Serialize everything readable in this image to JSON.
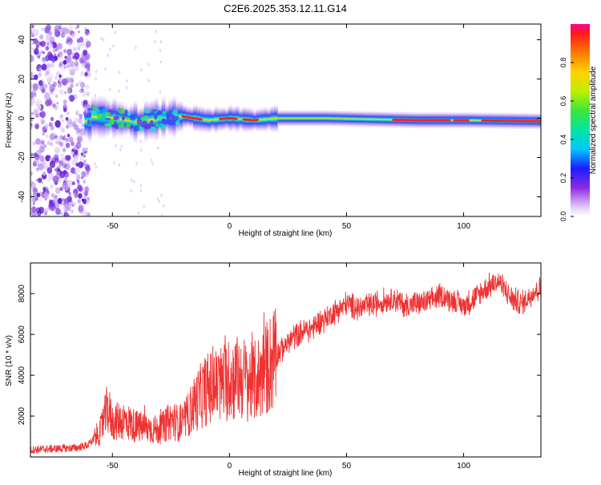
{
  "title": "C2E6.2025.353.12.11.G14",
  "chart_data": [
    {
      "type": "heatmap",
      "xlabel": "Height of straight line (km)",
      "ylabel": "Frequency (Hz)",
      "xlim": [
        -85,
        133
      ],
      "ylim": [
        -50,
        48
      ],
      "xticks": [
        -50,
        0,
        50,
        100
      ],
      "yticks": [
        -40,
        -20,
        0,
        20,
        40
      ],
      "grid": false,
      "colorbar": {
        "label": "Normalized spectral amplitude",
        "range": [
          0,
          1
        ],
        "ticks": [
          "0.0",
          "0.2",
          "0.4",
          "0.6",
          "0.8"
        ]
      },
      "ridge_frequency_hz": [
        [
          -60,
          1
        ],
        [
          -50,
          0
        ],
        [
          -40,
          -2
        ],
        [
          -30,
          0
        ],
        [
          -20,
          1
        ],
        [
          -10,
          -1
        ],
        [
          0,
          0
        ],
        [
          10,
          -1
        ],
        [
          20,
          0
        ],
        [
          40,
          0
        ],
        [
          60,
          -0.5
        ],
        [
          80,
          -1
        ],
        [
          100,
          -1
        ],
        [
          133,
          -1.5
        ]
      ]
    },
    {
      "type": "line",
      "xlabel": "Height of straight line (km)",
      "ylabel": "SNR (10 * v/v)",
      "xlim": [
        -85,
        133
      ],
      "ylim": [
        0,
        9500
      ],
      "xticks": [
        -50,
        0,
        50,
        100
      ],
      "yticks": [
        2000,
        4000,
        6000,
        8000
      ],
      "grid": false,
      "color": "#ee3333",
      "series": [
        {
          "x": [
            -85,
            -75,
            -65,
            -60,
            -55,
            -52,
            -50,
            -45,
            -40,
            -35,
            -30,
            -25,
            -20,
            -15,
            -10,
            -5,
            0,
            5,
            10,
            15,
            20,
            25,
            30,
            35,
            40,
            45,
            50,
            55,
            60,
            65,
            70,
            75,
            80,
            85,
            90,
            95,
            100,
            105,
            110,
            115,
            120,
            125,
            130,
            133
          ],
          "y": [
            350,
            400,
            450,
            600,
            1300,
            2400,
            1700,
            1800,
            1500,
            1400,
            1300,
            1800,
            1600,
            2600,
            3300,
            3500,
            3800,
            3900,
            3600,
            4200,
            5000,
            5600,
            6100,
            6300,
            6700,
            7100,
            7500,
            7300,
            7400,
            7600,
            7800,
            7400,
            7500,
            7600,
            7900,
            7700,
            7400,
            7800,
            8300,
            8600,
            7800,
            7500,
            8100,
            8300
          ]
        }
      ]
    }
  ]
}
